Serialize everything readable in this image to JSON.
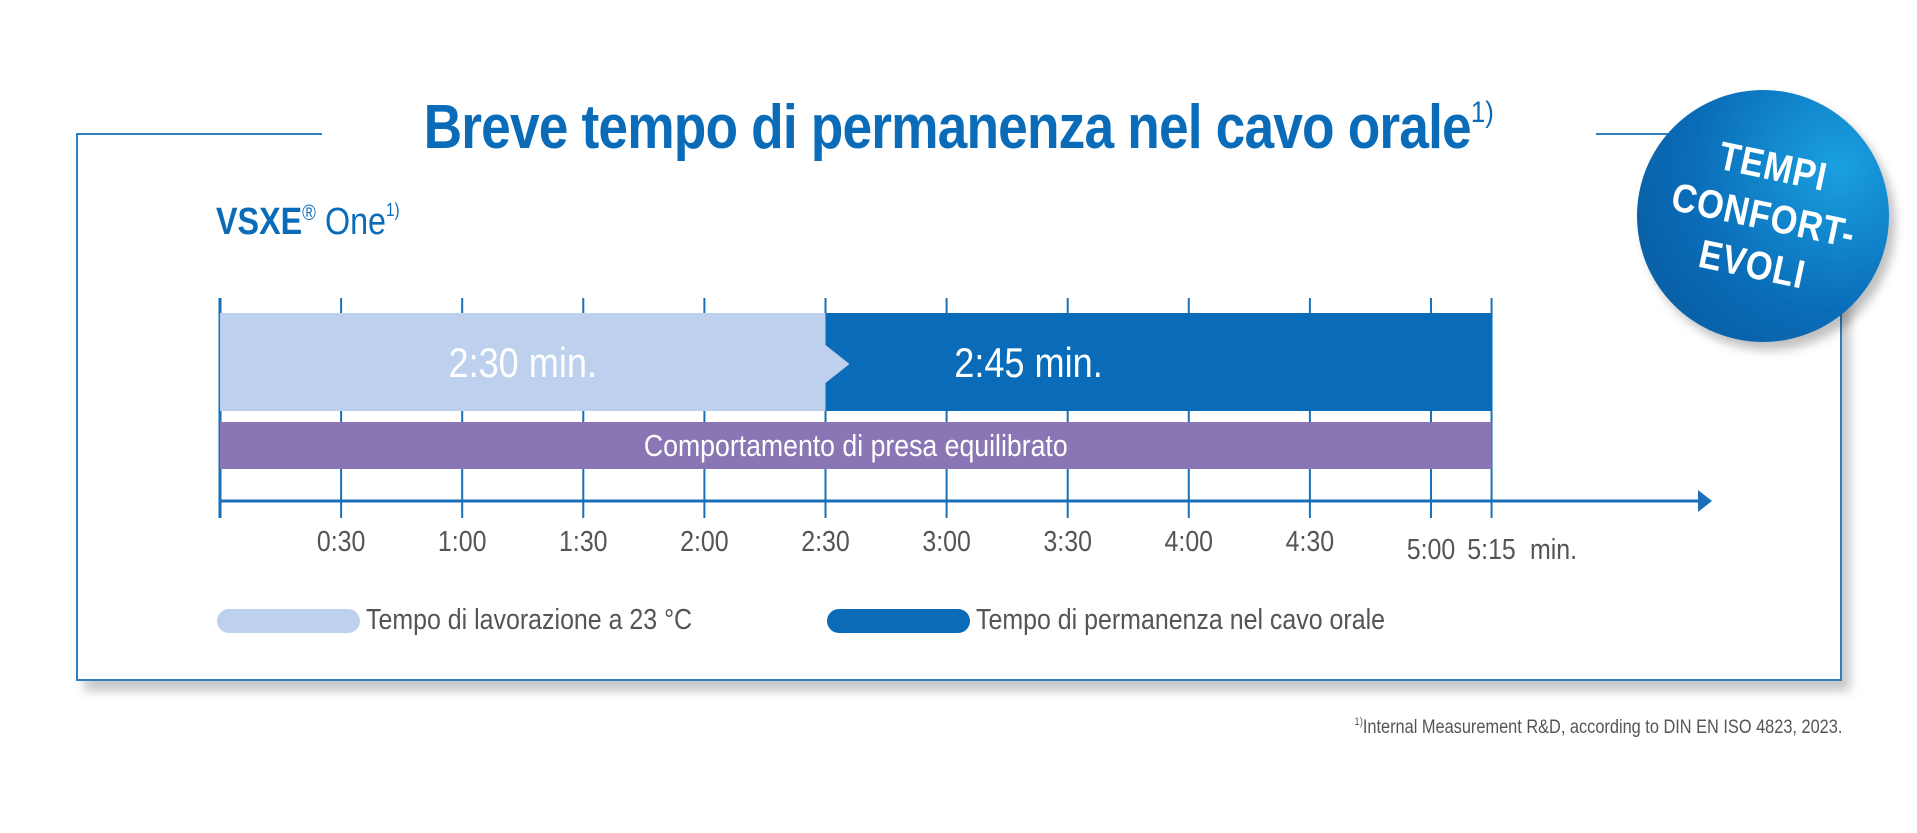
{
  "title": {
    "main": "Breve tempo di permanenza nel cavo orale",
    "superscript": "1)"
  },
  "product": {
    "name_bold": "VSXE",
    "registered": "®",
    "name_light": " One",
    "superscript": "1)"
  },
  "badge": {
    "lines": [
      "TEMPI",
      "CONFORT-",
      "EVOLI"
    ]
  },
  "chart_data": {
    "type": "bar",
    "orientation": "horizontal-timeline",
    "x_unit": "min.",
    "xlim": [
      "0:00",
      "5:15"
    ],
    "ticks": [
      "0:30",
      "1:00",
      "1:30",
      "2:00",
      "2:30",
      "3:00",
      "3:30",
      "4:00",
      "4:30",
      "5:00",
      "5:15"
    ],
    "segments": [
      {
        "name": "Tempo di lavorazione a 23 °C",
        "start": "0:00",
        "end": "2:30",
        "label": "2:30 min.",
        "color": "#bdd0ed"
      },
      {
        "name": "Tempo di permanenza nel cavo orale",
        "start": "2:30",
        "end": "5:15",
        "label": "2:45 min.",
        "color": "#0a6cb8"
      }
    ],
    "bands": [
      {
        "label": "Comportamento di presa equilibrato",
        "start": "0:00",
        "end": "5:15",
        "color": "#8b76b5"
      }
    ],
    "legend": [
      {
        "label": "Tempo di lavorazione a 23 °C",
        "color": "#bdd0ed"
      },
      {
        "label": "Tempo di permanenza nel cavo orale",
        "color": "#0a6cb8"
      }
    ]
  },
  "footnote": {
    "superscript": "1)",
    "text": "Internal Measurement R&D, according to DIN EN ISO 4823, 2023."
  },
  "colors": {
    "accent": "#0a6cb8",
    "light_segment": "#bdd0ed",
    "band": "#8b76b5",
    "axis": "#1a6fb8",
    "text_gray": "#555555"
  }
}
